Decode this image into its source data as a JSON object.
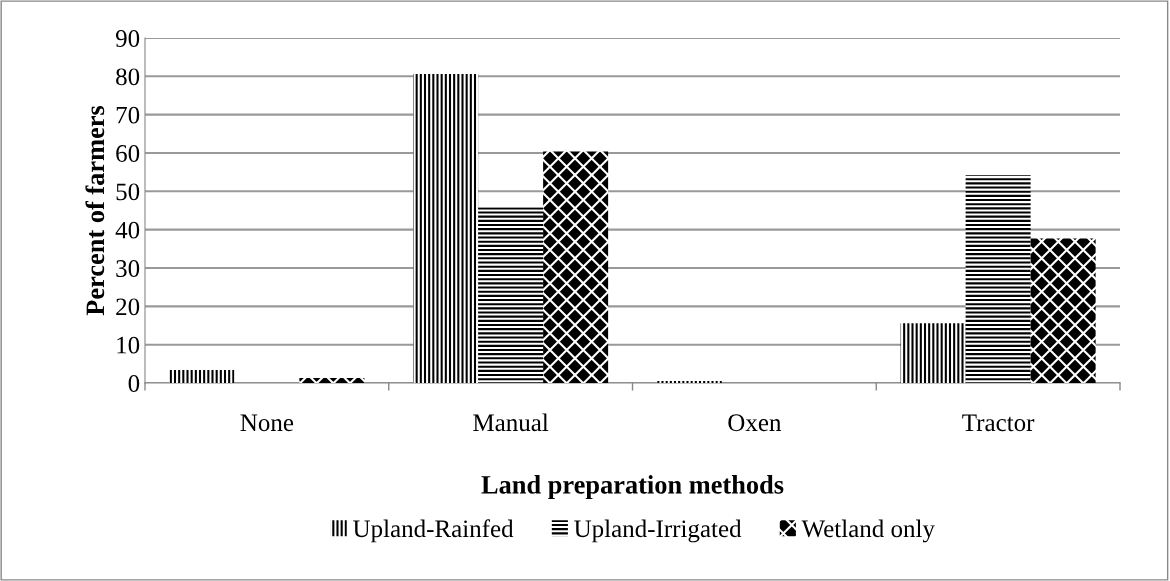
{
  "chart_data": {
    "type": "bar",
    "xlabel": "Land preparation methods",
    "ylabel": "Percent of farmers",
    "categories": [
      "None",
      "Manual",
      "Oxen",
      "Tractor"
    ],
    "series": [
      {
        "name": "Upland-Rainfed",
        "color": "#000000",
        "values": [
          3.4,
          80.6,
          0.5,
          15.6
        ]
      },
      {
        "name": "Upland-Irrigated",
        "color": "#000000",
        "values": [
          0,
          45.8,
          0,
          54.2
        ]
      },
      {
        "name": "Wetland only",
        "color": "#000000",
        "values": [
          1.3,
          60.4,
          0,
          37.7
        ]
      }
    ],
    "ylim": [
      0,
      90
    ],
    "yticks": [
      0,
      10,
      20,
      30,
      40,
      50,
      60,
      70,
      80,
      90
    ],
    "grid": "y",
    "legend": "bottom"
  }
}
